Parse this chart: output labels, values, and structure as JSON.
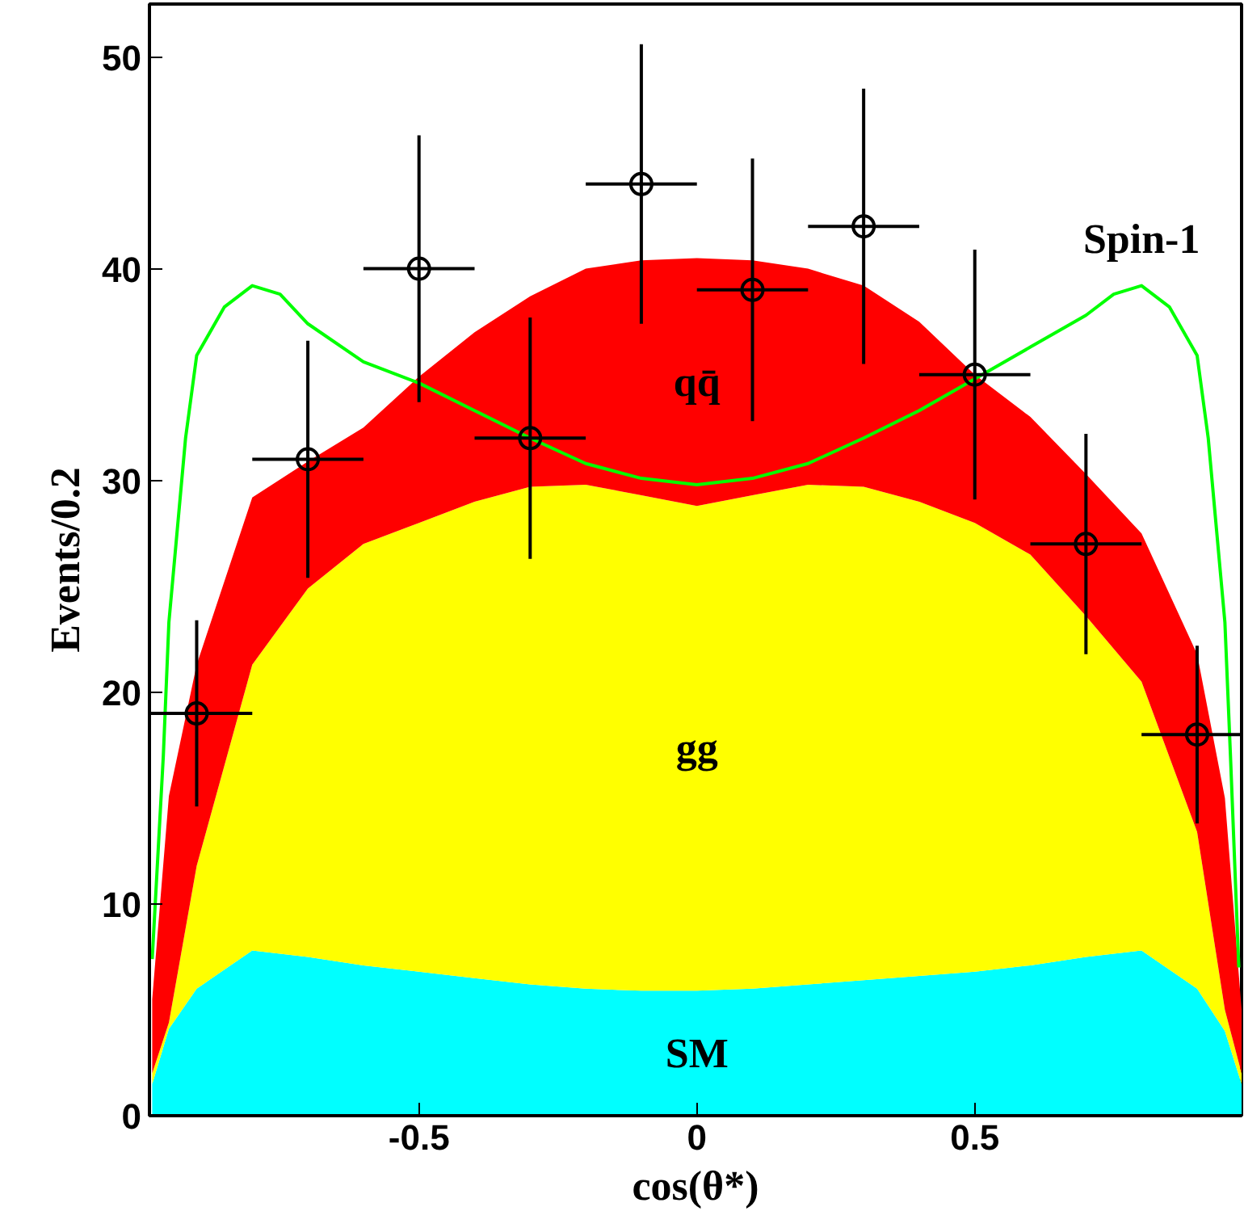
{
  "chart_data": {
    "type": "area",
    "xlabel": "cos(θ*)",
    "ylabel": "Events/0.2",
    "stacked": true,
    "grid": false,
    "xlim": [
      -0.985,
      0.98
    ],
    "ylim": [
      0,
      52.5
    ],
    "xticks": [
      -0.5,
      0,
      0.5
    ],
    "yticks": [
      0,
      10,
      20,
      30,
      40,
      50
    ],
    "x": [
      -0.98,
      -0.95,
      -0.9,
      -0.8,
      -0.7,
      -0.6,
      -0.5,
      -0.4,
      -0.3,
      -0.2,
      -0.1,
      0,
      0.1,
      0.2,
      0.3,
      0.4,
      0.5,
      0.6,
      0.7,
      0.8,
      0.9,
      0.95,
      0.98
    ],
    "series": [
      {
        "name": "SM",
        "color": "#00ffff",
        "values": [
          1.5,
          4.1,
          6.0,
          7.8,
          7.5,
          7.1,
          6.8,
          6.5,
          6.2,
          6.0,
          5.9,
          5.9,
          6.0,
          6.2,
          6.4,
          6.6,
          6.8,
          7.1,
          7.5,
          7.8,
          6.0,
          4.0,
          1.5
        ]
      },
      {
        "name": "gg",
        "color": "#ffff00",
        "values": [
          0.5,
          0.3,
          5.8,
          13.5,
          17.4,
          19.9,
          21.2,
          22.5,
          23.5,
          23.8,
          23.4,
          22.9,
          23.3,
          23.6,
          23.3,
          22.4,
          21.2,
          19.4,
          16.1,
          12.7,
          7.4,
          1.0,
          0.5
        ]
      },
      {
        "name": "qq̄",
        "color": "#ff0000",
        "values": [
          3.5,
          10.7,
          9.5,
          7.9,
          6.0,
          5.5,
          6.9,
          8.0,
          9.0,
          10.2,
          11.1,
          11.7,
          11.1,
          10.2,
          9.5,
          8.5,
          7.0,
          6.5,
          6.7,
          7.0,
          8.4,
          10.0,
          3.0
        ]
      },
      {
        "name": "Spin-1",
        "type": "line",
        "color": "#00ff00",
        "x": [
          -0.98,
          -0.96,
          -0.95,
          -0.92,
          -0.9,
          -0.85,
          -0.8,
          -0.75,
          -0.7,
          -0.6,
          -0.5,
          -0.4,
          -0.3,
          -0.2,
          -0.1,
          0,
          0.1,
          0.2,
          0.3,
          0.4,
          0.5,
          0.6,
          0.7,
          0.75,
          0.8,
          0.85,
          0.9,
          0.92,
          0.95,
          0.96,
          0.975
        ],
        "values": [
          7.4,
          17,
          23.3,
          32,
          35.9,
          38.2,
          39.2,
          38.8,
          37.4,
          35.6,
          34.6,
          33.3,
          32.0,
          30.8,
          30.1,
          29.8,
          30.1,
          30.8,
          32.0,
          33.3,
          34.8,
          36.3,
          37.8,
          38.8,
          39.2,
          38.2,
          35.9,
          32,
          23.3,
          17,
          7
        ]
      },
      {
        "type": "scatter",
        "color": "#000000",
        "marker": "circle",
        "x": [
          -0.9,
          -0.7,
          -0.5,
          -0.3,
          -0.1,
          0.1,
          0.3,
          0.5,
          0.7,
          0.9
        ],
        "values": [
          19,
          31,
          40,
          32,
          44,
          39,
          42,
          35,
          27,
          18
        ],
        "errors": [
          4.4,
          5.6,
          6.3,
          5.7,
          6.6,
          6.2,
          6.5,
          5.9,
          5.2,
          4.2
        ],
        "xerrors": [
          0.1,
          0.1,
          0.1,
          0.1,
          0.1,
          0.1,
          0.1,
          0.1,
          0.1,
          0.1
        ]
      }
    ]
  }
}
